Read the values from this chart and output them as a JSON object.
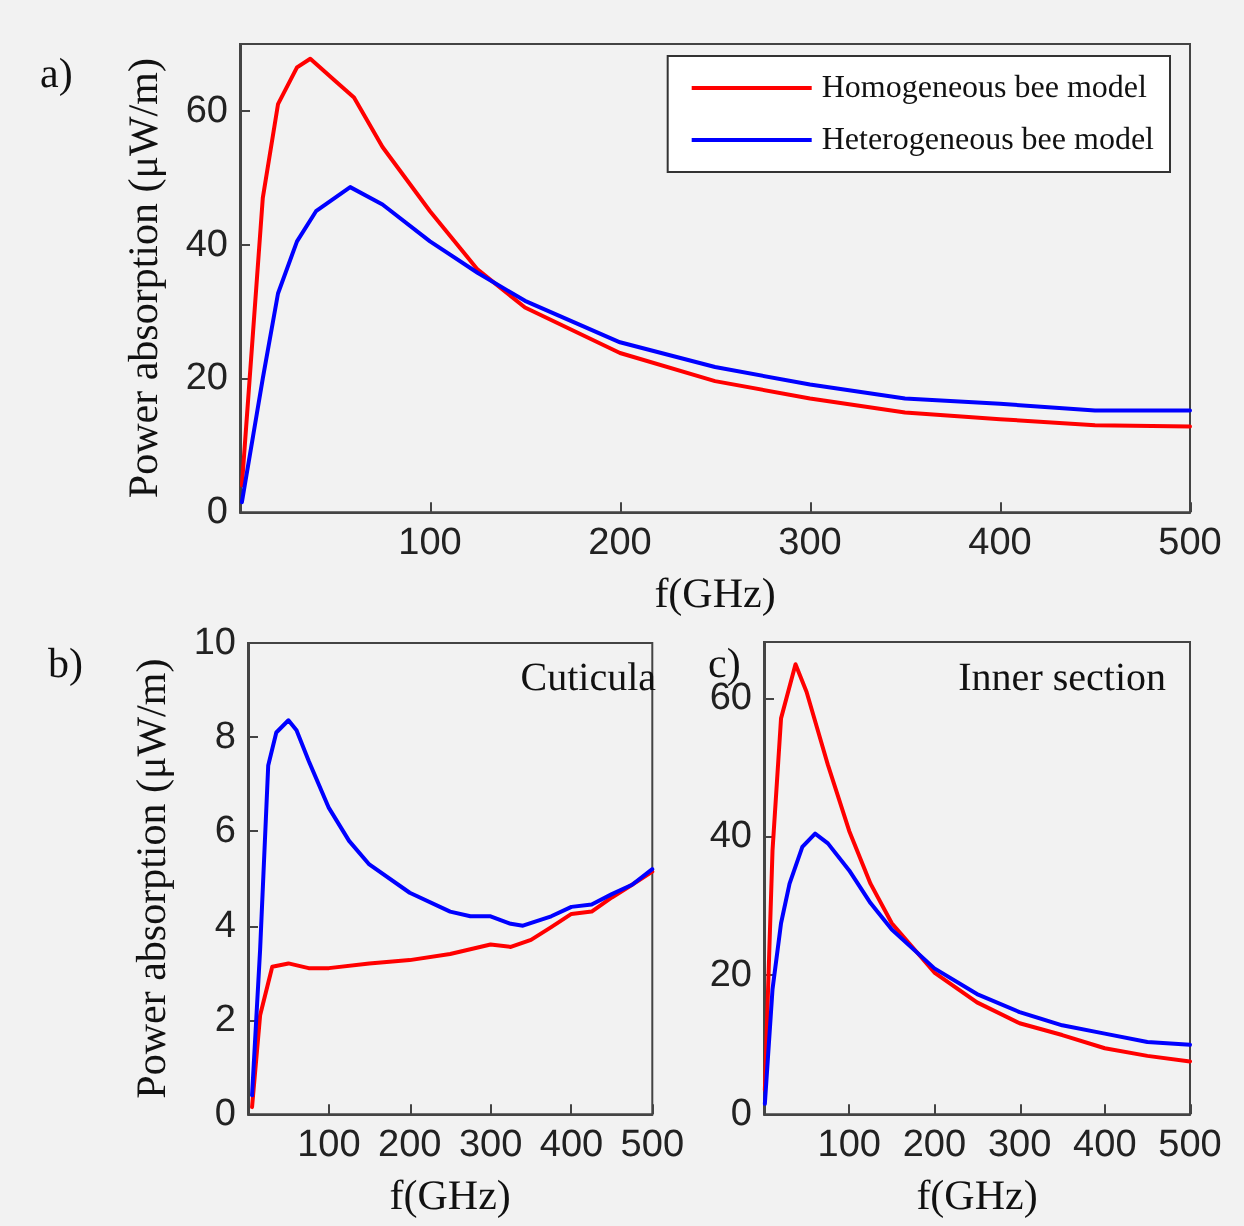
{
  "chart_data": [
    {
      "type": "line",
      "title": "a)",
      "xlabel": "f(GHz)",
      "ylabel": "Power absorption (μW/m)",
      "xlim": [
        0,
        500
      ],
      "xticks": [
        100,
        200,
        300,
        400,
        500
      ],
      "ylim": [
        0,
        70
      ],
      "yticks": [
        0,
        20,
        40,
        60
      ],
      "legend": "top right",
      "grid": false,
      "marker": "none",
      "line_style": "solid",
      "x": [
        1,
        12,
        20,
        30,
        37,
        50,
        60,
        75,
        100,
        125,
        150,
        200,
        250,
        300,
        350,
        400,
        450,
        500
      ],
      "series": [
        {
          "name": "Homogeneous bee model",
          "color": "#ff0000",
          "values": [
            4,
            47,
            61,
            66.5,
            67.8,
            64.5,
            62,
            54.6,
            45,
            36.3,
            30.6,
            23.8,
            19.6,
            17,
            14.9,
            13.9,
            13,
            12.8
          ]
        },
        {
          "name": "Heterogeneous bee model",
          "color": "#0000ff",
          "x": [
            1,
            12,
            20,
            30,
            40,
            58,
            75,
            100,
            125,
            150,
            200,
            250,
            300,
            350,
            400,
            450,
            500
          ],
          "values": [
            1.5,
            20,
            32.7,
            40.5,
            45,
            48.6,
            46,
            40.5,
            35.8,
            31.6,
            25.4,
            21.7,
            19.1,
            17,
            16.2,
            15.2,
            15.2
          ]
        }
      ]
    },
    {
      "type": "line",
      "title": "b)",
      "xlabel": "f(GHz)",
      "ylabel": "Power absorption (μW/m)",
      "annotations": [
        "Cuticula"
      ],
      "xlim": [
        0,
        500
      ],
      "xticks": [
        100,
        200,
        300,
        400,
        500
      ],
      "ylim": [
        0,
        10
      ],
      "yticks": [
        0,
        2,
        4,
        6,
        8,
        10
      ],
      "legend": false,
      "grid": false,
      "marker": "none",
      "line_style": "solid",
      "series": [
        {
          "color": "#ff0000",
          "x": [
            5,
            15,
            30,
            50,
            75,
            100,
            150,
            200,
            250,
            300,
            325,
            350,
            375,
            400,
            425,
            450,
            475,
            500
          ],
          "values": [
            0.15,
            2.1,
            3.13,
            3.2,
            3.1,
            3.1,
            3.2,
            3.27,
            3.4,
            3.6,
            3.55,
            3.7,
            3.97,
            4.25,
            4.3,
            4.6,
            4.87,
            5.15
          ]
        },
        {
          "color": "#0000ff",
          "x": [
            5,
            15,
            25,
            35,
            50,
            60,
            75,
            100,
            125,
            150,
            200,
            250,
            275,
            300,
            325,
            340,
            375,
            400,
            425,
            450,
            475,
            500
          ],
          "values": [
            0.4,
            3.5,
            7.4,
            8.1,
            8.36,
            8.15,
            7.5,
            6.5,
            5.8,
            5.3,
            4.7,
            4.3,
            4.2,
            4.2,
            4.04,
            4,
            4.2,
            4.4,
            4.45,
            4.67,
            4.87,
            5.2
          ]
        }
      ]
    },
    {
      "type": "line",
      "title": "c)",
      "xlabel": "f(GHz)",
      "annotations": [
        "Inner section"
      ],
      "xlim": [
        0,
        500
      ],
      "xticks": [
        100,
        200,
        300,
        400,
        500
      ],
      "ylim": [
        0,
        68
      ],
      "yticks": [
        0,
        20,
        40,
        60
      ],
      "legend": false,
      "grid": false,
      "marker": "none",
      "line_style": "solid",
      "series": [
        {
          "color": "#ff0000",
          "x": [
            1,
            10,
            20,
            37,
            50,
            75,
            100,
            125,
            150,
            200,
            250,
            300,
            350,
            400,
            450,
            500
          ],
          "values": [
            3.5,
            38,
            57,
            64.8,
            60.8,
            50.3,
            40.8,
            33.2,
            27.5,
            20.4,
            16.1,
            13.1,
            11.4,
            9.5,
            8.4,
            7.6
          ]
        },
        {
          "color": "#0000ff",
          "x": [
            1,
            10,
            20,
            30,
            45,
            60,
            75,
            100,
            125,
            150,
            200,
            250,
            300,
            350,
            400,
            450,
            500
          ],
          "values": [
            1.5,
            18,
            27.5,
            33.2,
            38.5,
            40.4,
            39,
            35.1,
            30.4,
            26.6,
            21,
            17.3,
            14.7,
            12.8,
            11.6,
            10.4,
            10
          ]
        }
      ]
    }
  ]
}
